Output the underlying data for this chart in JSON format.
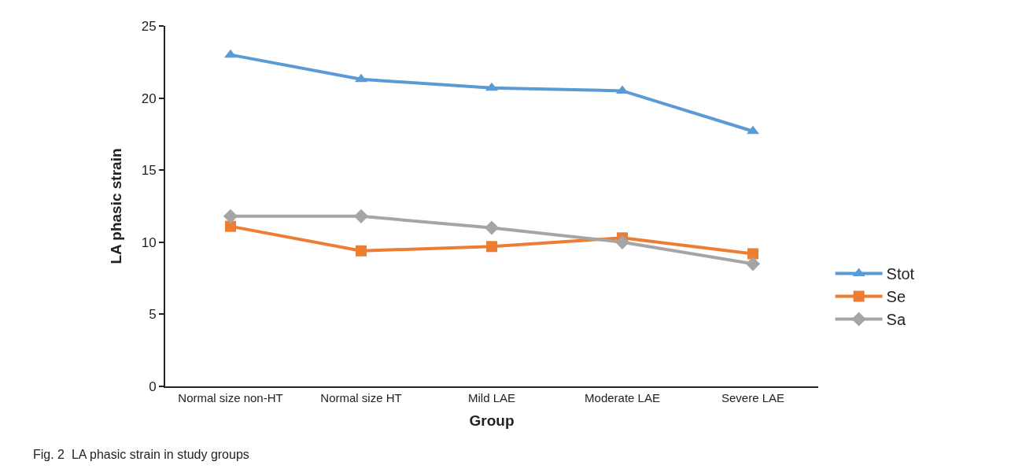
{
  "chart_data": {
    "type": "line",
    "xlabel": "Group",
    "ylabel": "LA phasic strain",
    "categories": [
      "Normal size non-HT",
      "Normal size HT",
      "Mild LAE",
      "Moderate LAE",
      "Severe LAE"
    ],
    "series": [
      {
        "name": "Stot",
        "color": "#5b9bd5",
        "marker": "triangle",
        "values": [
          23.0,
          21.3,
          20.7,
          20.5,
          17.7
        ]
      },
      {
        "name": "Se",
        "color": "#ed7d31",
        "marker": "square",
        "values": [
          11.1,
          9.4,
          9.7,
          10.3,
          9.2
        ]
      },
      {
        "name": "Sa",
        "color": "#a5a5a5",
        "marker": "diamond",
        "values": [
          11.8,
          11.8,
          11.0,
          10.0,
          8.5
        ]
      }
    ],
    "ylim": [
      0,
      25
    ],
    "yticks": [
      0,
      5,
      10,
      15,
      20,
      25
    ],
    "grid": false,
    "legend": "right",
    "line_style": "solid",
    "annotations": [
      "Fig. 2  LA phasic strain in study groups"
    ]
  }
}
